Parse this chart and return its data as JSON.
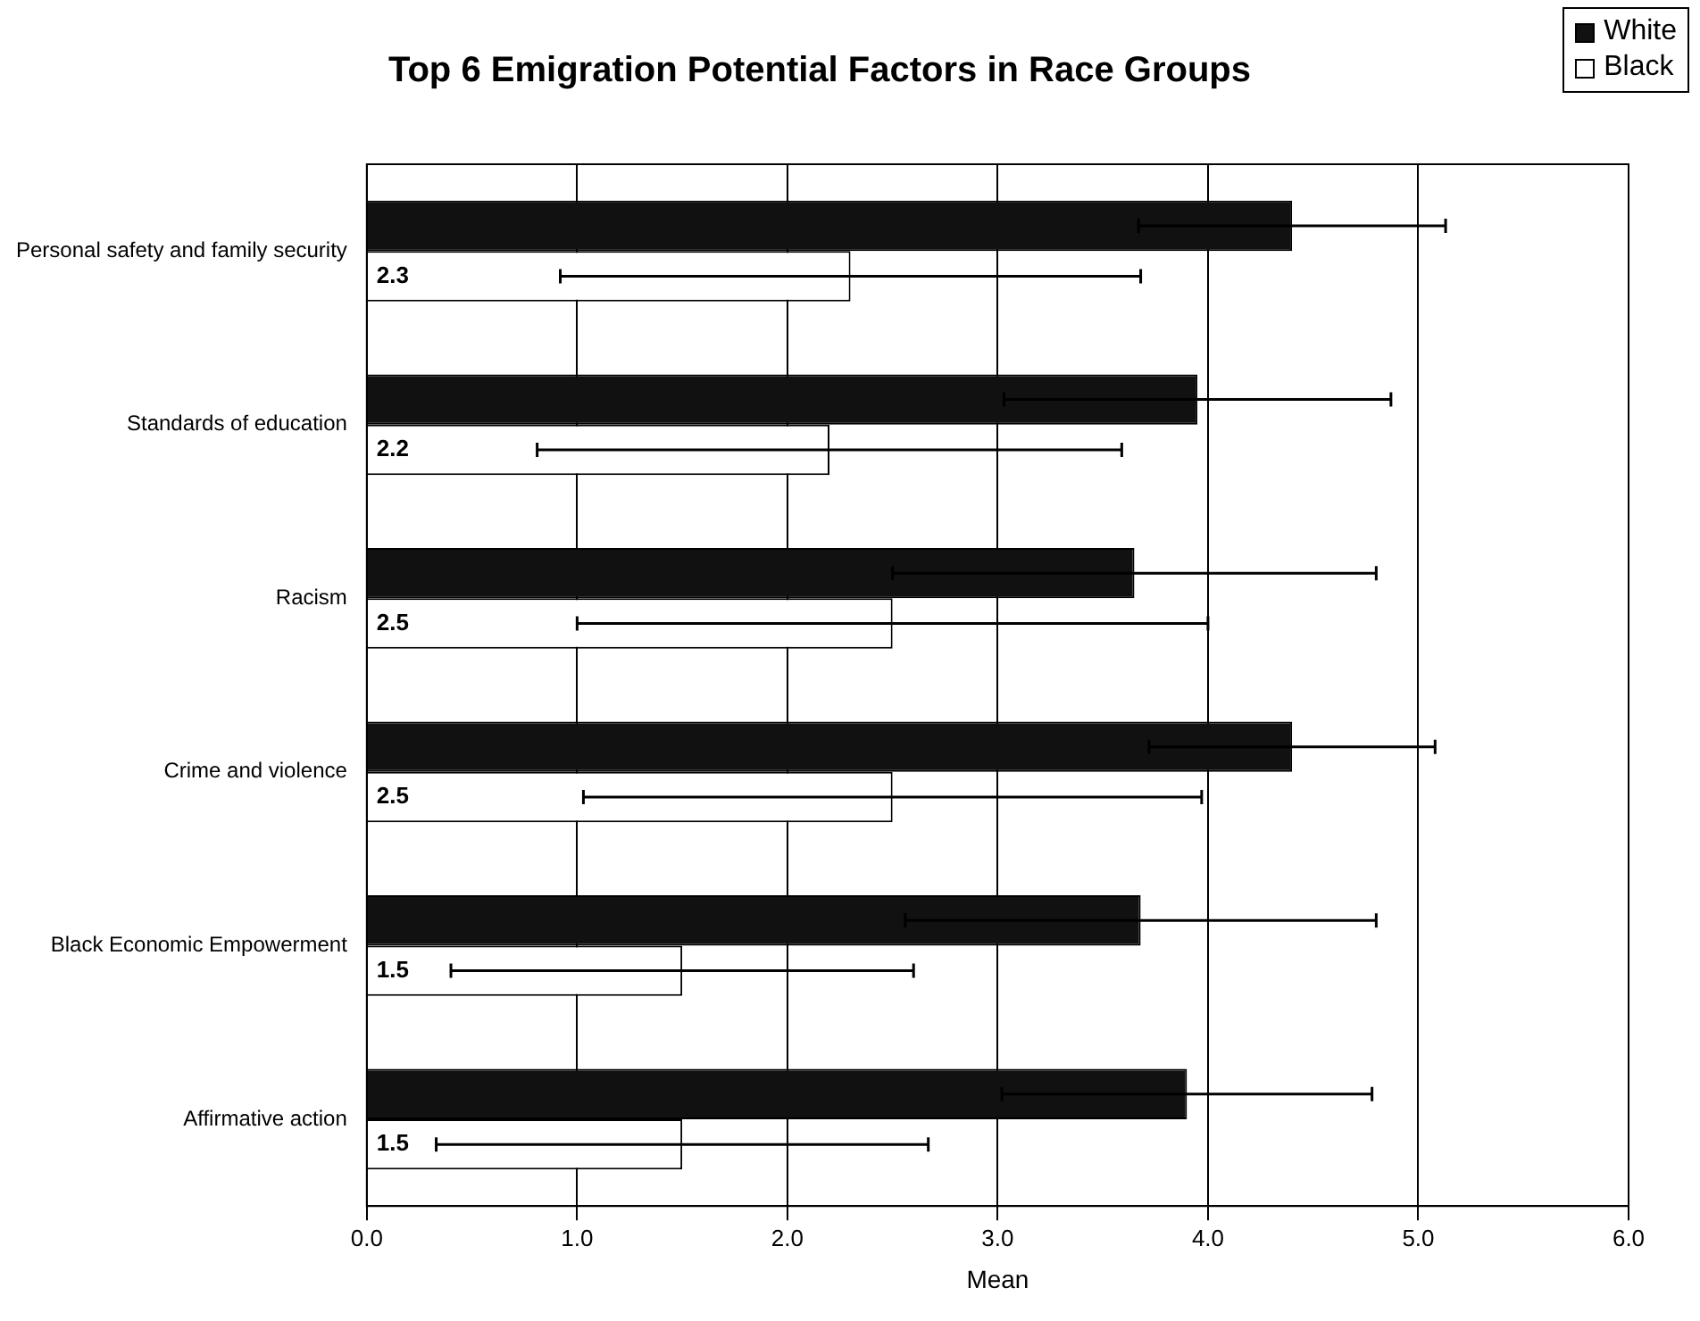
{
  "chart_data": {
    "type": "bar",
    "orientation": "horizontal",
    "title": "Top 6 Emigration Potential Factors in Race Groups",
    "xlabel": "Mean",
    "categories": [
      "Personal safety and family security",
      "Standards of education",
      "Racism",
      "Crime and violence",
      "Black Economic Empowerment",
      "Affirmative action"
    ],
    "series": [
      {
        "name": "White",
        "color": "#111111",
        "values": [
          4.4,
          3.95,
          3.65,
          4.4,
          3.68,
          3.9
        ],
        "errors": [
          0.73,
          0.92,
          1.15,
          0.68,
          1.12,
          0.88
        ]
      },
      {
        "name": "Black",
        "color": "#ffffff",
        "values": [
          2.3,
          2.2,
          2.5,
          2.5,
          1.5,
          1.5
        ],
        "errors": [
          1.38,
          1.39,
          1.5,
          1.47,
          1.1,
          1.17
        ],
        "value_labels": [
          "2.3",
          "2.2",
          "2.5",
          "2.5",
          "1.5",
          "1.5"
        ]
      }
    ],
    "xlim": [
      0,
      6
    ],
    "xticks": [
      {
        "value": 0,
        "label": "0.0"
      },
      {
        "value": 1,
        "label": "1.0"
      },
      {
        "value": 2,
        "label": "2.0"
      },
      {
        "value": 3,
        "label": "3.0"
      },
      {
        "value": 4,
        "label": "4.0"
      },
      {
        "value": 5,
        "label": "5.0"
      },
      {
        "value": 6,
        "label": "6.0"
      }
    ],
    "grid": "x",
    "legend": "top right"
  }
}
